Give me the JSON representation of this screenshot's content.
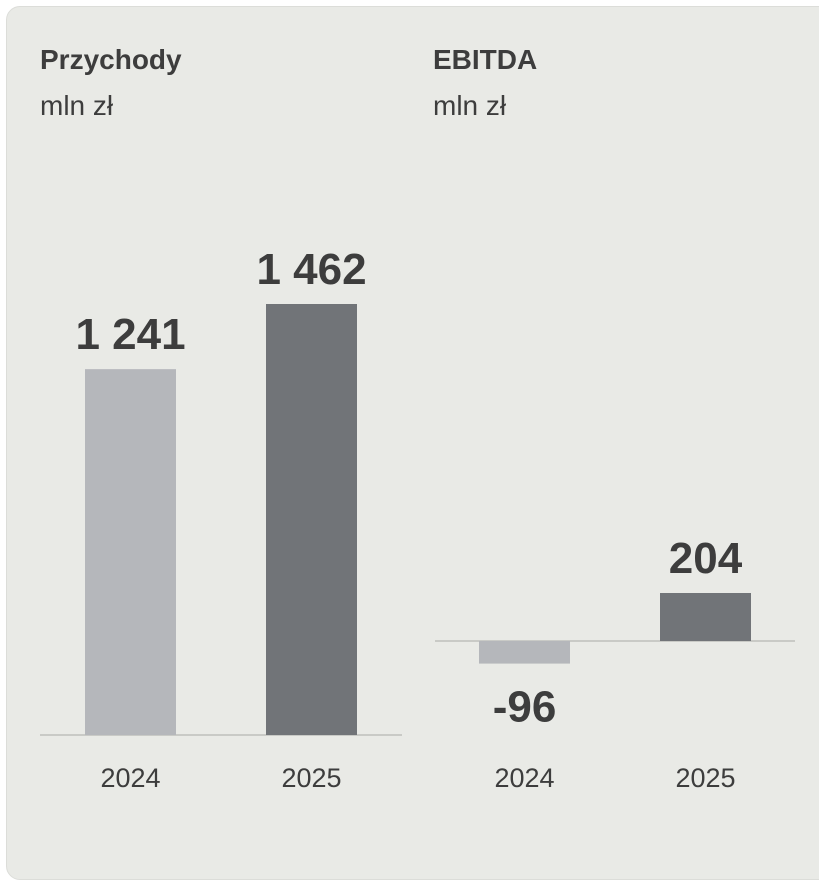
{
  "colors": {
    "background": "#e9eae6",
    "bar_2024": "#b5b7bb",
    "bar_2025": "#717478",
    "text": "#3d3d3d",
    "baseline": "#c9cac6"
  },
  "chart_data": [
    {
      "type": "bar",
      "title": "Przychody",
      "subtitle": "mln zł",
      "categories": [
        "2024",
        "2025"
      ],
      "values": [
        1241,
        1462
      ],
      "value_labels": [
        "1 241",
        "1 462"
      ],
      "ylim": [
        0,
        1462
      ]
    },
    {
      "type": "bar",
      "title": "EBITDA",
      "subtitle": "mln zł",
      "categories": [
        "2024",
        "2025"
      ],
      "values": [
        -96,
        204
      ],
      "value_labels": [
        "-96",
        "204"
      ],
      "ylim": [
        -96,
        204
      ]
    }
  ]
}
